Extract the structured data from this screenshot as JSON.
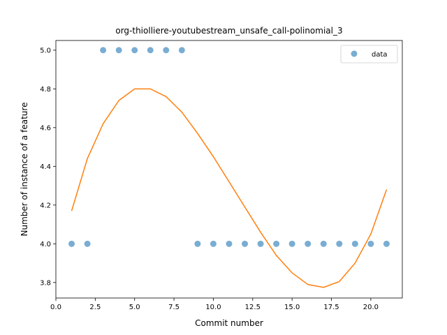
{
  "chart_data": {
    "type": "scatter",
    "title": "org-thiolliere-youtubestream_unsafe_call-polinomial_3",
    "xlabel": "Commit number",
    "ylabel": "Number of instance of a feature",
    "xlim": [
      0,
      22
    ],
    "ylim": [
      3.72,
      5.05
    ],
    "xticks": [
      0.0,
      2.5,
      5.0,
      7.5,
      10.0,
      12.5,
      15.0,
      17.5,
      20.0
    ],
    "xtick_labels": [
      "0.0",
      "2.5",
      "5.0",
      "7.5",
      "10.0",
      "12.5",
      "15.0",
      "17.5",
      "20.0"
    ],
    "yticks": [
      3.8,
      4.0,
      4.2,
      4.4,
      4.6,
      4.8,
      5.0
    ],
    "ytick_labels": [
      "3.8",
      "4.0",
      "4.2",
      "4.4",
      "4.6",
      "4.8",
      "5.0"
    ],
    "grid": false,
    "legend": {
      "position": "top-right",
      "entries": [
        "data"
      ]
    },
    "series": [
      {
        "name": "data",
        "kind": "scatter",
        "color": "#1f77b4",
        "x": [
          1,
          2,
          3,
          4,
          5,
          6,
          7,
          8,
          9,
          10,
          11,
          12,
          13,
          14,
          15,
          16,
          17,
          18,
          19,
          20,
          21
        ],
        "y": [
          4,
          4,
          5,
          5,
          5,
          5,
          5,
          5,
          4,
          4,
          4,
          4,
          4,
          4,
          4,
          4,
          4,
          4,
          4,
          4,
          4
        ]
      },
      {
        "kind": "line",
        "color": "#ff7f0e",
        "x": [
          1,
          2,
          3,
          4,
          5,
          6,
          7,
          8,
          9,
          10,
          11,
          12,
          13,
          14,
          15,
          16,
          17,
          18,
          19,
          20,
          21
        ],
        "y": [
          4.17,
          4.44,
          4.62,
          4.74,
          4.8,
          4.8,
          4.76,
          4.68,
          4.57,
          4.45,
          4.32,
          4.19,
          4.06,
          3.94,
          3.85,
          3.79,
          3.775,
          3.805,
          3.9,
          4.05,
          4.28
        ]
      }
    ]
  }
}
